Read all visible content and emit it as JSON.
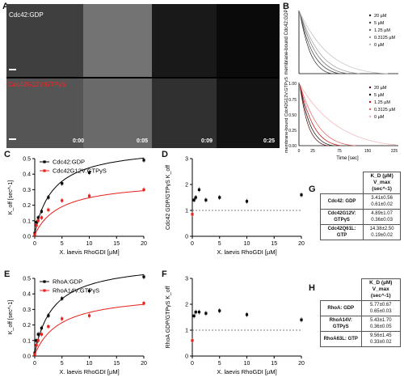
{
  "panels": {
    "A": "A",
    "B": "B",
    "C": "C",
    "D": "D",
    "E": "E",
    "F": "F",
    "G": "G",
    "H": "H"
  },
  "panelA": {
    "top_label": "Cdc42:GDP",
    "bottom_label": "Cdc42G12V:GTPγS",
    "times": [
      "0:00",
      "0:05",
      "0:09",
      "0:25"
    ]
  },
  "panelB": {
    "top_ylabel": "membrane-bound Cdc42:GDP",
    "bottom_ylabel": "membrane-bound Cdc42G12V:GTPγS",
    "xlabel": "Time [sec]",
    "xticks": [
      "0",
      "25",
      "75",
      "150",
      "225"
    ],
    "yticks": [
      "1.00",
      "0.75",
      "0.50",
      "0.25",
      "0.00"
    ],
    "legend": [
      "20 µM",
      "5 µM",
      "1.25 µM",
      "0.3125 µM",
      "0 µM"
    ]
  },
  "chart_data": [
    {
      "panel": "C",
      "type": "scatter",
      "xlabel": "X. laevis RhoGDI [µM]",
      "ylabel": "K_off [sec^-1]",
      "xlim": [
        0,
        20
      ],
      "ylim": [
        0,
        0.5
      ],
      "xticks": [
        "0",
        "5",
        "10",
        "15",
        "20"
      ],
      "yticks": [
        "0.0",
        "0.1",
        "0.2",
        "0.3",
        "0.4",
        "0.5"
      ],
      "series": [
        {
          "name": "Cdc42:GDP",
          "color": "#000000",
          "x": [
            0,
            0.3125,
            0.625,
            1.25,
            2.5,
            5,
            10,
            20
          ],
          "y": [
            0.02,
            0.09,
            0.12,
            0.16,
            0.25,
            0.34,
            0.41,
            0.49
          ]
        },
        {
          "name": "Cdc42G12V:GTPγS",
          "color": "#e8201c",
          "x": [
            0,
            0.3125,
            0.625,
            1.25,
            2.5,
            5,
            10,
            20
          ],
          "y": [
            0.01,
            0.07,
            0.1,
            0.12,
            0.17,
            0.23,
            0.26,
            0.3
          ]
        }
      ]
    },
    {
      "panel": "D",
      "type": "scatter",
      "xlabel": "X. laevis RhoGDI [µM]",
      "ylabel": "Cdc42 GDP/GTPγS K_off",
      "xlim": [
        0,
        20
      ],
      "ylim": [
        0,
        3
      ],
      "xticks": [
        "0",
        "5",
        "10",
        "15",
        "20"
      ],
      "yticks": [
        "0",
        "1",
        "2",
        "3"
      ],
      "series": [
        {
          "name": "",
          "color": "#000000",
          "x": [
            0.3125,
            0.625,
            1.25,
            2.5,
            5,
            10,
            20
          ],
          "y": [
            1.4,
            1.5,
            1.8,
            1.4,
            1.5,
            1.35,
            1.6
          ]
        },
        {
          "name": "",
          "color": "#e8201c",
          "x": [
            0
          ],
          "y": [
            0.85
          ]
        }
      ],
      "reference_line": 1
    },
    {
      "panel": "E",
      "type": "scatter",
      "xlabel": "X. laevis RhoGDI [µM]",
      "ylabel": "K_off [sec^-1]",
      "xlim": [
        0,
        20
      ],
      "ylim": [
        0,
        0.5
      ],
      "xticks": [
        "0",
        "5",
        "10",
        "15",
        "20"
      ],
      "yticks": [
        "0.0",
        "0.1",
        "0.2",
        "0.3",
        "0.4",
        "0.5"
      ],
      "series": [
        {
          "name": "RhoA:GDP",
          "color": "#000000",
          "x": [
            0,
            0.3125,
            0.625,
            1.25,
            2.5,
            5,
            10,
            20
          ],
          "y": [
            0.02,
            0.1,
            0.14,
            0.18,
            0.26,
            0.37,
            0.42,
            0.51
          ]
        },
        {
          "name": "RhoA14V:GTPγS",
          "color": "#e8201c",
          "x": [
            0,
            0.3125,
            0.625,
            1.25,
            2.5,
            5,
            10,
            20
          ],
          "y": [
            0.01,
            0.07,
            0.1,
            0.14,
            0.19,
            0.24,
            0.26,
            0.34
          ]
        }
      ]
    },
    {
      "panel": "F",
      "type": "scatter",
      "xlabel": "X. laevis RhoGDI [µM]",
      "ylabel": "RhoA GDP/GTPγS K_off",
      "xlim": [
        0,
        20
      ],
      "ylim": [
        0,
        3
      ],
      "xticks": [
        "0",
        "5",
        "10",
        "15",
        "20"
      ],
      "yticks": [
        "0",
        "1",
        "2",
        "3"
      ],
      "series": [
        {
          "name": "",
          "color": "#000000",
          "x": [
            0.3125,
            0.625,
            1.25,
            2.5,
            5,
            10,
            20
          ],
          "y": [
            1.55,
            1.7,
            1.7,
            1.65,
            1.75,
            1.6,
            1.4
          ]
        },
        {
          "name": "",
          "color": "#e8201c",
          "x": [
            0
          ],
          "y": [
            0.6
          ]
        }
      ],
      "reference_line": 1
    }
  ],
  "tableG": {
    "header1": "K_D (µM)",
    "header2": "V_max (sec^-1)",
    "rows": [
      {
        "name": "Cdc42: GDP",
        "kd": "3.41±0.56",
        "vmax": "0.61±0.02"
      },
      {
        "name": "Cdc42G12V: GTPγS",
        "kd": "4.89±1.07",
        "vmax": "0.36±0.03"
      },
      {
        "name": "Cdc42Q61L: GTP",
        "kd": "14.38±2.50",
        "vmax": "0.19±0.02"
      }
    ]
  },
  "tableH": {
    "header1": "K_D (µM)",
    "header2": "V_max (sec^-1)",
    "rows": [
      {
        "name": "RhoA: GDP",
        "kd": "5.77±0.67",
        "vmax": "0.65±0.03"
      },
      {
        "name": "RhoA14V: GTPγS",
        "kd": "5.43±1.70",
        "vmax": "0.36±0.05"
      },
      {
        "name": "RhoA63L: GTP",
        "kd": "9.56±1.45",
        "vmax": "0.33±0.02"
      }
    ]
  }
}
